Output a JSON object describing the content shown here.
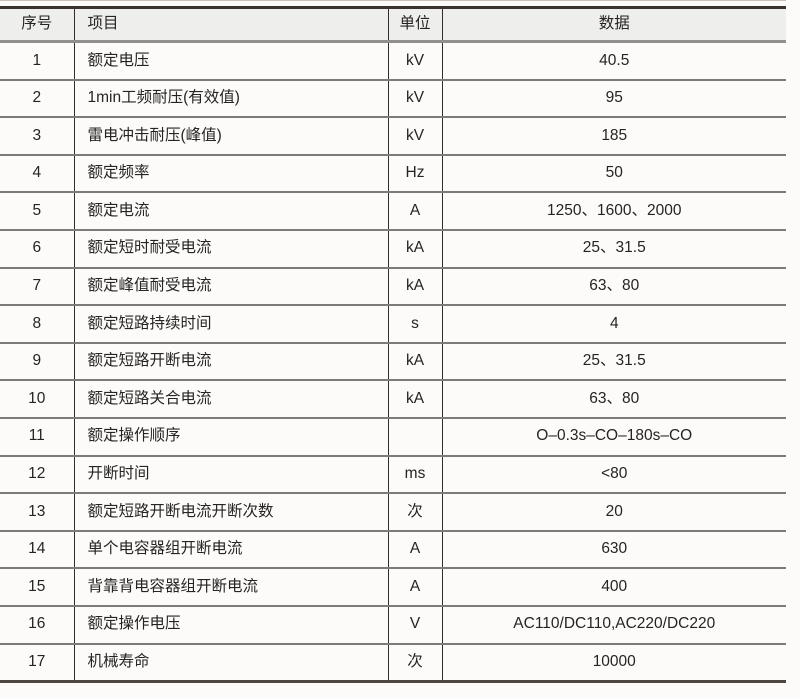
{
  "table": {
    "headers": {
      "index": "序号",
      "item": "项目",
      "unit": "单位",
      "data": "数据"
    },
    "rows": [
      {
        "index": "1",
        "item": "额定电压",
        "unit": "kV",
        "data": "40.5"
      },
      {
        "index": "2",
        "item": "1min工频耐压(有效值)",
        "unit": "kV",
        "data": "95"
      },
      {
        "index": "3",
        "item": "雷电冲击耐压(峰值)",
        "unit": "kV",
        "data": "185"
      },
      {
        "index": "4",
        "item": "额定频率",
        "unit": "Hz",
        "data": "50"
      },
      {
        "index": "5",
        "item": "额定电流",
        "unit": "A",
        "data": "1250、1600、2000"
      },
      {
        "index": "6",
        "item": "额定短时耐受电流",
        "unit": "kA",
        "data": "25、31.5"
      },
      {
        "index": "7",
        "item": "额定峰值耐受电流",
        "unit": "kA",
        "data": "63、80"
      },
      {
        "index": "8",
        "item": "额定短路持续时间",
        "unit": "s",
        "data": "4"
      },
      {
        "index": "9",
        "item": "额定短路开断电流",
        "unit": "kA",
        "data": "25、31.5"
      },
      {
        "index": "10",
        "item": "额定短路关合电流",
        "unit": "kA",
        "data": "63、80"
      },
      {
        "index": "11",
        "item": "额定操作顺序",
        "unit": "",
        "data": "O–0.3s–CO–180s–CO"
      },
      {
        "index": "12",
        "item": "开断时间",
        "unit": "ms",
        "data": "<80"
      },
      {
        "index": "13",
        "item": "额定短路开断电流开断次数",
        "unit": "次",
        "data": "20"
      },
      {
        "index": "14",
        "item": "单个电容器组开断电流",
        "unit": "A",
        "data": "630"
      },
      {
        "index": "15",
        "item": "背靠背电容器组开断电流",
        "unit": "A",
        "data": "400"
      },
      {
        "index": "16",
        "item": "额定操作电压",
        "unit": "V",
        "data": "AC110/DC110,AC220/DC220"
      },
      {
        "index": "17",
        "item": "机械寿命",
        "unit": "次",
        "data": "10000"
      }
    ],
    "colors": {
      "header_bg": "#eeefec",
      "top_border": "#39322d",
      "header_bottom_border": "#918e8b",
      "row_separator": "#7d7a77",
      "bottom_border": "#4d4743",
      "column_rule": "#332d28",
      "text": "#272321",
      "page_bg": "#fcfbf9"
    }
  }
}
